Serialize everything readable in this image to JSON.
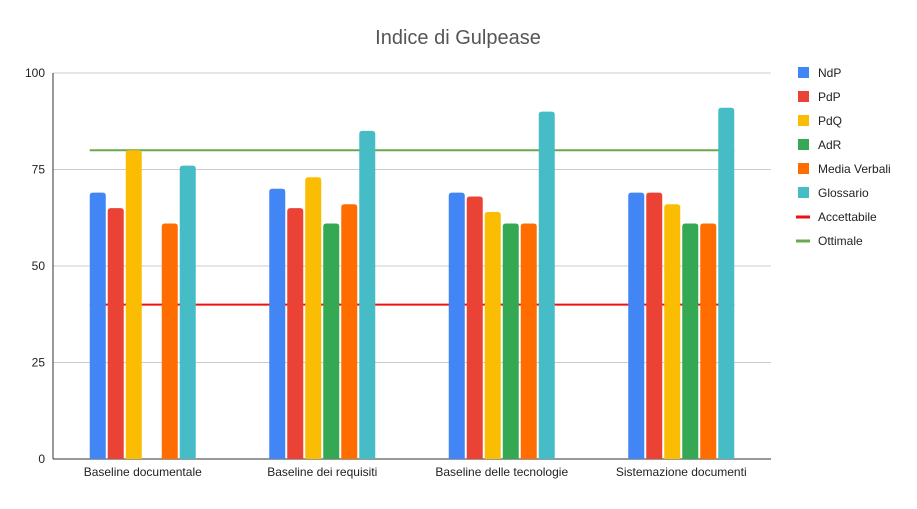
{
  "chart_data": {
    "type": "bar",
    "title": "Indice di Gulpease",
    "xlabel": "",
    "ylabel": "",
    "ylim": [
      0,
      100
    ],
    "yticks": [
      0,
      25,
      50,
      75,
      100
    ],
    "grid": true,
    "legend_position": "right",
    "categories": [
      "Baseline documentale",
      "Baseline dei requisiti",
      "Baseline delle tecnologie",
      "Sistemazione documenti"
    ],
    "series": [
      {
        "name": "NdP",
        "color": "#4285F4",
        "values": [
          69,
          70,
          69,
          69
        ]
      },
      {
        "name": "PdP",
        "color": "#EA4335",
        "values": [
          65,
          65,
          68,
          69
        ]
      },
      {
        "name": "PdQ",
        "color": "#FBBC04",
        "values": [
          80,
          73,
          64,
          66
        ]
      },
      {
        "name": "AdR",
        "color": "#34A853",
        "values": [
          null,
          61,
          61,
          61
        ]
      },
      {
        "name": "Media Verbali",
        "color": "#FF6D01",
        "values": [
          61,
          66,
          61,
          61
        ]
      },
      {
        "name": "Glossario",
        "color": "#46BDC6",
        "values": [
          76,
          85,
          90,
          91
        ]
      }
    ],
    "reference_lines": [
      {
        "name": "Accettabile",
        "color": "#EE1111",
        "value": 40
      },
      {
        "name": "Ottimale",
        "color": "#6AA84F",
        "value": 80
      }
    ]
  }
}
